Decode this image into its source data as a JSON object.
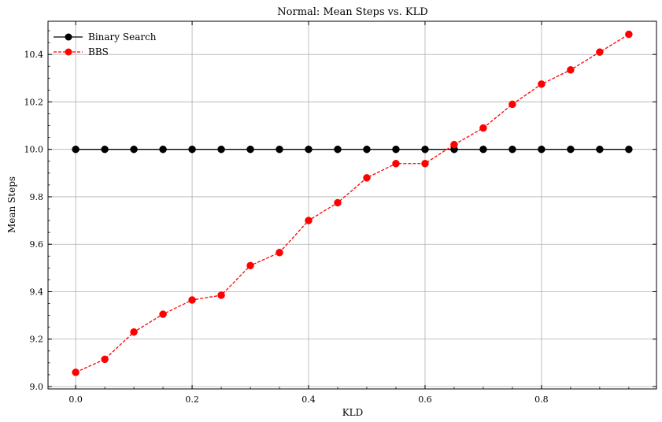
{
  "chart_data": {
    "type": "line",
    "title": "Normal: Mean Steps vs. KLD",
    "xlabel": "KLD",
    "ylabel": "Mean Steps",
    "xlim": [
      -0.0475,
      0.9975
    ],
    "ylim": [
      8.99,
      10.54
    ],
    "xticks": [
      0.0,
      0.2,
      0.4,
      0.6,
      0.8
    ],
    "xtick_labels": [
      "0.0",
      "0.2",
      "0.4",
      "0.6",
      "0.8"
    ],
    "yticks": [
      9.0,
      9.2,
      9.4,
      9.6,
      9.8,
      10.0,
      10.2,
      10.4
    ],
    "ytick_labels": [
      "9.0",
      "9.2",
      "9.4",
      "9.6",
      "9.8",
      "10.0",
      "10.2",
      "10.4"
    ],
    "grid": true,
    "legend": "top-left",
    "x": [
      0.0,
      0.05,
      0.1,
      0.15,
      0.2,
      0.25,
      0.3,
      0.35,
      0.4,
      0.45,
      0.5,
      0.55,
      0.6,
      0.65,
      0.7,
      0.75,
      0.8,
      0.85,
      0.9,
      0.95
    ],
    "series": [
      {
        "name": "Binary Search",
        "color": "#000000",
        "linestyle": "solid",
        "marker": "circle",
        "values": [
          10.0,
          10.0,
          10.0,
          10.0,
          10.0,
          10.0,
          10.0,
          10.0,
          10.0,
          10.0,
          10.0,
          10.0,
          10.0,
          10.0,
          10.0,
          10.0,
          10.0,
          10.0,
          10.0,
          10.0
        ]
      },
      {
        "name": "BBS",
        "color": "#ff0000",
        "linestyle": "dashed",
        "marker": "circle",
        "values": [
          9.06,
          9.115,
          9.23,
          9.305,
          9.365,
          9.385,
          9.51,
          9.565,
          9.7,
          9.775,
          9.88,
          9.94,
          9.94,
          10.02,
          10.09,
          10.19,
          10.275,
          10.335,
          10.41,
          10.485
        ]
      }
    ]
  }
}
